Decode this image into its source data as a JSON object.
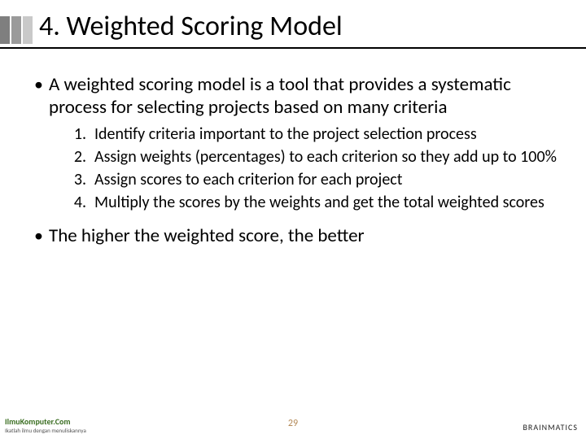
{
  "colors": {
    "bar1": "#7f7f7f",
    "bar2": "#9a9a9a",
    "bar3": "#c9c9c9",
    "title_underline": "#000000",
    "text": "#000000",
    "page_num": "#b48a58",
    "footer_left": "#3b6e22",
    "background": "#ffffff"
  },
  "typography": {
    "title_fontsize": 34,
    "bullet_fontsize": 23,
    "numbered_fontsize": 20,
    "pagenum_fontsize": 12
  },
  "title": "4. Weighted Scoring Model",
  "bullets": [
    "A weighted scoring model is a tool that provides a systematic process for selecting projects based on many criteria",
    "The higher the weighted score, the better"
  ],
  "numbered": [
    "Identify criteria important to the project selection process",
    "Assign weights (percentages) to each criterion so they add up to 100%",
    "Assign scores to each criterion for each project",
    "Multiply the scores by the weights and get the total weighted scores"
  ],
  "page_number": "29",
  "footer_left_main": "IlmuKomputer.Com",
  "footer_left_sub": "Ikatlah ilmu dengan menuliskannya",
  "footer_right": "BRAINMATICS"
}
